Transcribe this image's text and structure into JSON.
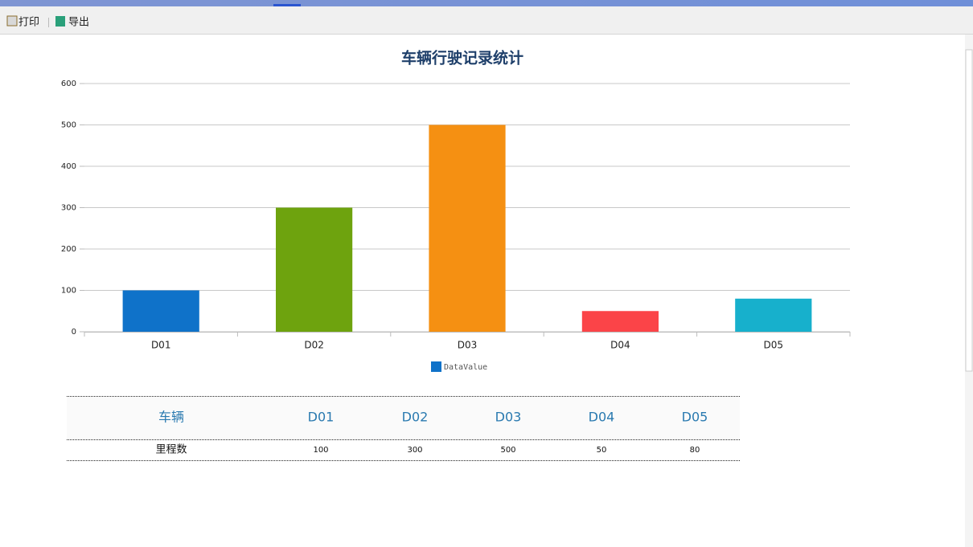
{
  "toolbar": {
    "print": "打印",
    "export": "导出"
  },
  "chart_data": {
    "type": "bar",
    "title": "车辆行驶记录统计",
    "categories": [
      "D01",
      "D02",
      "D03",
      "D04",
      "D05"
    ],
    "series": [
      {
        "name": "DataValue",
        "color": "#0f72c9",
        "colors": [
          "#0f72c9",
          "#6ea30e",
          "#f59012",
          "#fb4448",
          "#17b0cc"
        ],
        "values": [
          100,
          300,
          500,
          50,
          80
        ]
      }
    ],
    "ylim": [
      0,
      600
    ],
    "yticks": [
      0,
      100,
      200,
      300,
      400,
      500,
      600
    ],
    "grid": true,
    "legend": "bottom"
  },
  "table": {
    "header": [
      "车辆",
      "D01",
      "D02",
      "D03",
      "D04",
      "D05"
    ],
    "rows": [
      [
        "里程数",
        100,
        300,
        500,
        50,
        80
      ]
    ]
  }
}
